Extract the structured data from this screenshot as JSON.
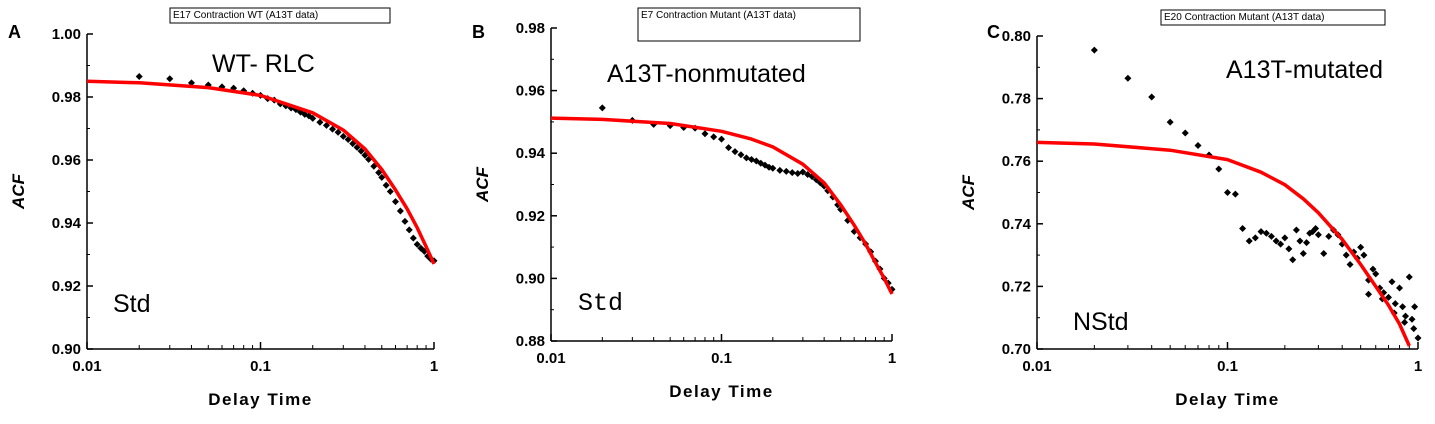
{
  "chart_data": [
    {
      "type": "scatter",
      "panel": "A",
      "box_title": "E17 Contraction WT (A13T data)",
      "label": "WT- RLC",
      "fit_type": "Std",
      "xlabel": "Delay Time",
      "ylabel": "ACF",
      "xscale": "log",
      "xlim": [
        0.01,
        1
      ],
      "ylim": [
        0.9,
        1.0
      ],
      "xticks": [
        "0.01",
        "0.1",
        "1"
      ],
      "yticks": [
        "0.90",
        "0.92",
        "0.94",
        "0.96",
        "0.98",
        "1.00"
      ],
      "series": [
        {
          "kind": "points",
          "x": [
            0.02,
            0.03,
            0.04,
            0.05,
            0.06,
            0.07,
            0.08,
            0.09,
            0.1,
            0.11,
            0.12,
            0.13,
            0.14,
            0.15,
            0.16,
            0.17,
            0.18,
            0.19,
            0.2,
            0.22,
            0.24,
            0.26,
            0.28,
            0.3,
            0.32,
            0.34,
            0.36,
            0.38,
            0.4,
            0.42,
            0.45,
            0.48,
            0.5,
            0.53,
            0.56,
            0.6,
            0.64,
            0.68,
            0.72,
            0.76,
            0.8,
            0.84,
            0.88,
            0.92,
            0.96,
            1.0
          ],
          "y": [
            0.9865,
            0.9858,
            0.9845,
            0.9838,
            0.9832,
            0.9828,
            0.982,
            0.9812,
            0.9805,
            0.9795,
            0.979,
            0.9778,
            0.9772,
            0.9765,
            0.976,
            0.9752,
            0.9745,
            0.974,
            0.9732,
            0.972,
            0.971,
            0.9698,
            0.9688,
            0.9675,
            0.9665,
            0.9652,
            0.964,
            0.9628,
            0.9615,
            0.9602,
            0.958,
            0.956,
            0.9545,
            0.952,
            0.95,
            0.9468,
            0.9438,
            0.9405,
            0.9378,
            0.9352,
            0.9332,
            0.932,
            0.931,
            0.9295,
            0.9285,
            0.928
          ]
        },
        {
          "kind": "fit",
          "color": "#ff0000",
          "x": [
            0.01,
            0.02,
            0.05,
            0.1,
            0.2,
            0.3,
            0.4,
            0.5,
            0.6,
            0.7,
            0.8,
            0.9,
            1.0
          ],
          "y": [
            0.985,
            0.9845,
            0.983,
            0.9805,
            0.975,
            0.9695,
            0.9635,
            0.957,
            0.9505,
            0.9445,
            0.9385,
            0.9325,
            0.927
          ]
        }
      ]
    },
    {
      "type": "scatter",
      "panel": "B",
      "box_title": "E7 Contraction Mutant (A13T data)",
      "label": "A13T-nonmutated",
      "fit_type": "Std",
      "xlabel": "Delay Time",
      "ylabel": "ACF",
      "xscale": "log",
      "xlim": [
        0.01,
        1
      ],
      "ylim": [
        0.88,
        0.98
      ],
      "xticks": [
        "0.01",
        "0.1",
        "1"
      ],
      "yticks": [
        "0.88",
        "0.90",
        "0.92",
        "0.94",
        "0.96",
        "0.98"
      ],
      "series": [
        {
          "kind": "points",
          "x": [
            0.02,
            0.03,
            0.04,
            0.05,
            0.06,
            0.07,
            0.08,
            0.09,
            0.1,
            0.11,
            0.12,
            0.13,
            0.14,
            0.15,
            0.16,
            0.17,
            0.18,
            0.19,
            0.2,
            0.22,
            0.24,
            0.26,
            0.28,
            0.3,
            0.32,
            0.34,
            0.36,
            0.38,
            0.4,
            0.42,
            0.45,
            0.48,
            0.5,
            0.55,
            0.6,
            0.65,
            0.7,
            0.75,
            0.8,
            0.85,
            0.9,
            0.95,
            1.0
          ],
          "y": [
            0.9545,
            0.9505,
            0.9492,
            0.9488,
            0.9482,
            0.948,
            0.9462,
            0.9452,
            0.9445,
            0.9418,
            0.9405,
            0.9395,
            0.9385,
            0.938,
            0.9375,
            0.9368,
            0.9362,
            0.9355,
            0.9352,
            0.9345,
            0.9342,
            0.9338,
            0.9335,
            0.934,
            0.9332,
            0.9325,
            0.9315,
            0.9305,
            0.9295,
            0.928,
            0.926,
            0.9235,
            0.922,
            0.9185,
            0.915,
            0.913,
            0.911,
            0.9085,
            0.9055,
            0.903,
            0.9,
            0.8985,
            0.8965
          ]
        },
        {
          "kind": "fit",
          "color": "#ff0000",
          "x": [
            0.01,
            0.02,
            0.05,
            0.1,
            0.15,
            0.2,
            0.3,
            0.4,
            0.5,
            0.6,
            0.7,
            0.8,
            0.9,
            1.0
          ],
          "y": [
            0.9512,
            0.9508,
            0.9495,
            0.947,
            0.9445,
            0.942,
            0.9365,
            0.9305,
            0.9235,
            0.917,
            0.911,
            0.905,
            0.9,
            0.895
          ]
        }
      ]
    },
    {
      "type": "scatter",
      "panel": "C",
      "box_title": "E20 Contraction Mutant (A13T data)",
      "label": "A13T-mutated",
      "fit_type": "NStd",
      "xlabel": "Delay Time",
      "ylabel": "ACF",
      "xscale": "log",
      "xlim": [
        0.01,
        1
      ],
      "ylim": [
        0.7,
        0.8
      ],
      "xticks": [
        "0.01",
        "0.1",
        "1"
      ],
      "yticks": [
        "0.70",
        "0.72",
        "0.74",
        "0.76",
        "0.78",
        "0.80"
      ],
      "series": [
        {
          "kind": "points",
          "x": [
            0.02,
            0.03,
            0.04,
            0.05,
            0.06,
            0.07,
            0.08,
            0.09,
            0.1,
            0.11,
            0.12,
            0.13,
            0.14,
            0.15,
            0.16,
            0.17,
            0.18,
            0.19,
            0.2,
            0.21,
            0.22,
            0.23,
            0.24,
            0.25,
            0.26,
            0.27,
            0.28,
            0.29,
            0.3,
            0.32,
            0.34,
            0.36,
            0.38,
            0.4,
            0.42,
            0.44,
            0.46,
            0.48,
            0.5,
            0.52,
            0.55,
            0.58,
            0.6,
            0.63,
            0.66,
            0.7,
            0.73,
            0.76,
            0.8,
            0.83,
            0.86,
            0.9,
            0.93,
            0.96,
            1.0,
            0.55,
            0.65,
            0.75,
            0.85,
            0.95
          ],
          "y": [
            0.7955,
            0.7865,
            0.7805,
            0.7725,
            0.769,
            0.765,
            0.762,
            0.7575,
            0.75,
            0.7495,
            0.7385,
            0.7345,
            0.7355,
            0.7375,
            0.737,
            0.736,
            0.7345,
            0.7335,
            0.7355,
            0.732,
            0.7285,
            0.738,
            0.7345,
            0.7305,
            0.734,
            0.737,
            0.7375,
            0.7385,
            0.7365,
            0.7305,
            0.736,
            0.738,
            0.7365,
            0.7335,
            0.73,
            0.727,
            0.731,
            0.729,
            0.7325,
            0.73,
            0.722,
            0.7255,
            0.724,
            0.7195,
            0.718,
            0.7165,
            0.7215,
            0.7145,
            0.7195,
            0.7135,
            0.7105,
            0.723,
            0.7095,
            0.7135,
            0.7035,
            0.7175,
            0.716,
            0.7115,
            0.7085,
            0.7065
          ]
        },
        {
          "kind": "fit",
          "color": "#ff0000",
          "x": [
            0.01,
            0.02,
            0.05,
            0.1,
            0.15,
            0.2,
            0.25,
            0.3,
            0.4,
            0.5,
            0.6,
            0.7,
            0.8,
            0.9
          ],
          "y": [
            0.766,
            0.7655,
            0.7635,
            0.7605,
            0.7565,
            0.7525,
            0.748,
            0.7435,
            0.735,
            0.727,
            0.72,
            0.714,
            0.708,
            0.701
          ]
        }
      ]
    }
  ]
}
